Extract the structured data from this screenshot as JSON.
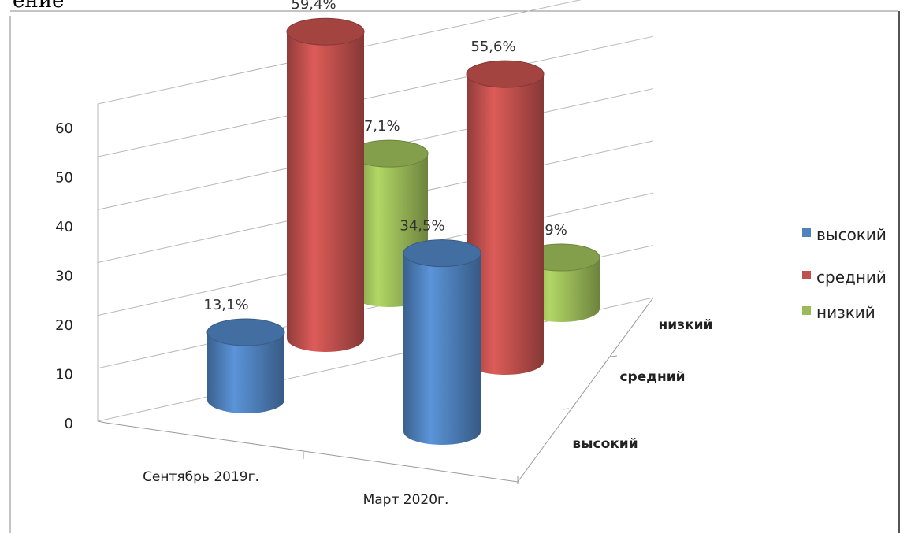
{
  "header_fragment": "ение",
  "chart_data": {
    "type": "bar",
    "style": "3d-cylinder",
    "categories": [
      "Сентябрь 2019г.",
      "Март 2020г."
    ],
    "depth_labels": [
      "высокий",
      "средний",
      "низкий"
    ],
    "series": [
      {
        "name": "высокий",
        "values": [
          13.1,
          34.5
        ],
        "labels": [
          "13,1%",
          "34,5%"
        ],
        "color": "#4f81bd"
      },
      {
        "name": "средний",
        "values": [
          59.4,
          55.6
        ],
        "labels": [
          "59,4%",
          "55,6%"
        ],
        "color": "#c0504d"
      },
      {
        "name": "низкий",
        "values": [
          27.1,
          9.9
        ],
        "labels": [
          "27,1%",
          "9,9%"
        ],
        "color": "#9bbb59"
      }
    ],
    "y_ticks": [
      0,
      10,
      20,
      30,
      40,
      50,
      60
    ],
    "ylim": [
      0,
      60
    ],
    "legend_position": "right",
    "grid": true
  }
}
